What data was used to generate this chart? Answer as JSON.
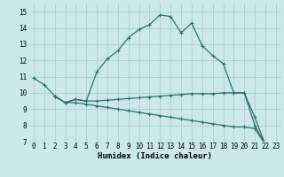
{
  "title": "",
  "xlabel": "Humidex (Indice chaleur)",
  "bg_color": "#cce8ec",
  "grid_color": "#b0ced4",
  "line_color": "#2d7070",
  "xlim": [
    -0.5,
    23.5
  ],
  "ylim": [
    7,
    15.5
  ],
  "xticks": [
    0,
    1,
    2,
    3,
    4,
    5,
    6,
    7,
    8,
    9,
    10,
    11,
    12,
    13,
    14,
    15,
    16,
    17,
    18,
    19,
    20,
    21,
    22,
    23
  ],
  "yticks": [
    7,
    8,
    9,
    10,
    11,
    12,
    13,
    14,
    15
  ],
  "line1_x": [
    0,
    1,
    2,
    3,
    4,
    5,
    6,
    7,
    8,
    9,
    10,
    11,
    12,
    13,
    14,
    15,
    16,
    17,
    18,
    19,
    20,
    21,
    22,
    23
  ],
  "line1_y": [
    10.9,
    10.5,
    9.8,
    9.4,
    9.6,
    9.5,
    11.3,
    12.1,
    12.6,
    13.4,
    13.9,
    14.2,
    14.8,
    14.7,
    13.7,
    14.3,
    12.9,
    12.3,
    11.8,
    10.0,
    10.0,
    8.0,
    6.8,
    6.7
  ],
  "line2_x": [
    2,
    3,
    4,
    5,
    6,
    7,
    8,
    9,
    10,
    11,
    12,
    13,
    14,
    15,
    16,
    17,
    18,
    19,
    20,
    21,
    22,
    23
  ],
  "line2_y": [
    9.8,
    9.4,
    9.6,
    9.5,
    9.5,
    9.55,
    9.6,
    9.65,
    9.7,
    9.75,
    9.8,
    9.85,
    9.9,
    9.95,
    9.95,
    9.95,
    10.0,
    10.0,
    10.0,
    8.5,
    6.8,
    6.7
  ],
  "line3_x": [
    2,
    3,
    4,
    5,
    6,
    7,
    8,
    9,
    10,
    11,
    12,
    13,
    14,
    15,
    16,
    17,
    18,
    19,
    20,
    21,
    22,
    23
  ],
  "line3_y": [
    9.8,
    9.4,
    9.4,
    9.3,
    9.2,
    9.1,
    9.0,
    8.9,
    8.8,
    8.7,
    8.6,
    8.5,
    8.4,
    8.3,
    8.2,
    8.1,
    8.0,
    7.9,
    7.9,
    7.8,
    6.8,
    6.7
  ],
  "tick_fontsize": 5.5,
  "xlabel_fontsize": 6.5,
  "marker_size": 3,
  "linewidth": 0.9
}
